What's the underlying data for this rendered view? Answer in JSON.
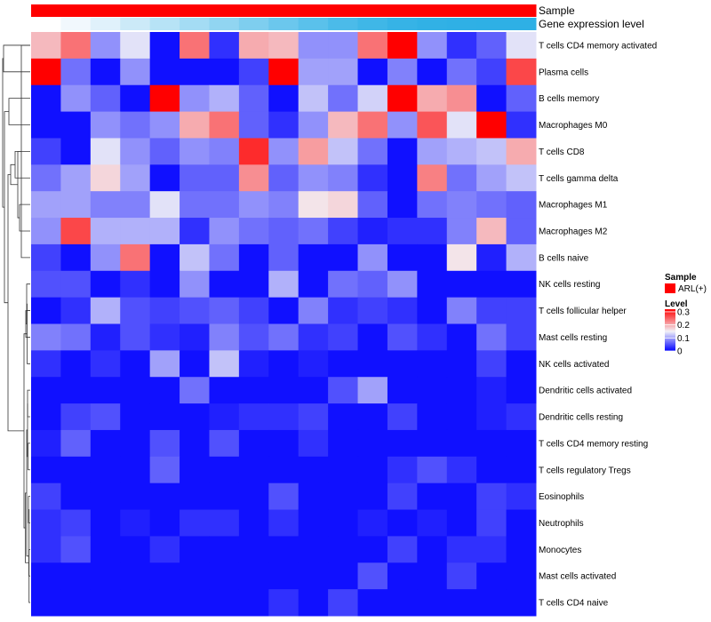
{
  "chart_data": {
    "type": "heatmap",
    "annotations": [
      {
        "name": "Sample",
        "color": "#ff0000"
      },
      {
        "name": "Gene expression level",
        "colors": [
          "#ffffff",
          "#f1f8fd",
          "#e0f1fb",
          "#cceaf8",
          "#b7e3f6",
          "#a4dcf4",
          "#91d5f1",
          "#7eceef",
          "#6bc7ed",
          "#5ac1eb",
          "#4bbbe9",
          "#3fb7e7",
          "#36b3e6",
          "#31b1e5",
          "#2fb0e5",
          "#2eb0e5"
        ]
      }
    ],
    "rows": [
      "T cells CD4 memory activated",
      "Plasma cells",
      "B cells memory",
      "Macrophages M0",
      "T cells CD8",
      "T cells gamma delta",
      "Macrophages M1",
      "Macrophages M2",
      "B cells naive",
      "NK cells resting",
      "T cells follicular helper",
      "Mast cells resting",
      "NK cells activated",
      "Dendritic cells activated",
      "Dendritic cells resting",
      "T cells CD4 memory resting",
      "T cells regulatory  Tregs",
      "Eosinophils",
      "Neutrophils",
      "Monocytes",
      "Mast cells activated",
      "T cells CD4 naive"
    ],
    "values": [
      [
        0.19,
        0.24,
        0.09,
        0.14,
        0.01,
        0.24,
        0.03,
        0.2,
        0.19,
        0.09,
        0.09,
        0.24,
        0.32,
        0.09,
        0.03,
        0.06,
        0.14
      ],
      [
        0.32,
        0.07,
        0.01,
        0.09,
        0.01,
        0.01,
        0.01,
        0.04,
        0.32,
        0.1,
        0.1,
        0.01,
        0.08,
        0.01,
        0.07,
        0.04,
        0.27
      ],
      [
        0.01,
        0.09,
        0.06,
        0.01,
        0.32,
        0.09,
        0.11,
        0.06,
        0.01,
        0.12,
        0.07,
        0.13,
        0.32,
        0.2,
        0.22,
        0.01,
        0.06
      ],
      [
        0.01,
        0.01,
        0.09,
        0.07,
        0.09,
        0.2,
        0.24,
        0.06,
        0.03,
        0.09,
        0.19,
        0.24,
        0.09,
        0.26,
        0.14,
        0.32,
        0.03
      ],
      [
        0.04,
        0.01,
        0.14,
        0.09,
        0.06,
        0.09,
        0.08,
        0.29,
        0.09,
        0.21,
        0.12,
        0.07,
        0.01,
        0.1,
        0.11,
        0.12,
        0.2
      ],
      [
        0.07,
        0.1,
        0.17,
        0.1,
        0.01,
        0.06,
        0.06,
        0.22,
        0.06,
        0.09,
        0.08,
        0.03,
        0.01,
        0.23,
        0.07,
        0.1,
        0.12
      ],
      [
        0.1,
        0.1,
        0.08,
        0.08,
        0.14,
        0.07,
        0.07,
        0.09,
        0.08,
        0.16,
        0.17,
        0.06,
        0.01,
        0.07,
        0.08,
        0.07,
        0.06
      ],
      [
        0.09,
        0.27,
        0.11,
        0.11,
        0.11,
        0.03,
        0.09,
        0.07,
        0.06,
        0.07,
        0.04,
        0.02,
        0.03,
        0.03,
        0.08,
        0.19,
        0.06
      ],
      [
        0.04,
        0.01,
        0.09,
        0.24,
        0.01,
        0.12,
        0.07,
        0.01,
        0.06,
        0.01,
        0.01,
        0.09,
        0.01,
        0.01,
        0.16,
        0.02,
        0.11
      ],
      [
        0.05,
        0.05,
        0.01,
        0.03,
        0.01,
        0.09,
        0.01,
        0.01,
        0.11,
        0.01,
        0.07,
        0.06,
        0.09,
        0.01,
        0.01,
        0.01,
        0.01
      ],
      [
        0.01,
        0.03,
        0.11,
        0.05,
        0.04,
        0.05,
        0.06,
        0.04,
        0.01,
        0.08,
        0.03,
        0.04,
        0.03,
        0.01,
        0.08,
        0.04,
        0.04
      ],
      [
        0.08,
        0.07,
        0.02,
        0.05,
        0.03,
        0.02,
        0.08,
        0.05,
        0.07,
        0.03,
        0.04,
        0.01,
        0.05,
        0.03,
        0.01,
        0.07,
        0.04
      ],
      [
        0.03,
        0.01,
        0.03,
        0.01,
        0.1,
        0.01,
        0.12,
        0.02,
        0.01,
        0.02,
        0.01,
        0.01,
        0.01,
        0.01,
        0.01,
        0.04,
        0.01
      ],
      [
        0.01,
        0.01,
        0.01,
        0.01,
        0.01,
        0.07,
        0.01,
        0.01,
        0.01,
        0.01,
        0.05,
        0.1,
        0.01,
        0.01,
        0.01,
        0.02,
        0.01
      ],
      [
        0.01,
        0.04,
        0.05,
        0.01,
        0.01,
        0.01,
        0.02,
        0.03,
        0.03,
        0.04,
        0.01,
        0.01,
        0.04,
        0.01,
        0.01,
        0.02,
        0.03
      ],
      [
        0.02,
        0.06,
        0.01,
        0.01,
        0.05,
        0.01,
        0.05,
        0.01,
        0.01,
        0.03,
        0.01,
        0.01,
        0.01,
        0.01,
        0.01,
        0.01,
        0.01
      ],
      [
        0.01,
        0.01,
        0.01,
        0.01,
        0.06,
        0.01,
        0.01,
        0.01,
        0.01,
        0.01,
        0.01,
        0.01,
        0.03,
        0.05,
        0.03,
        0.01,
        0.01
      ],
      [
        0.04,
        0.01,
        0.01,
        0.01,
        0.01,
        0.01,
        0.01,
        0.01,
        0.05,
        0.01,
        0.01,
        0.01,
        0.04,
        0.01,
        0.01,
        0.04,
        0.03
      ],
      [
        0.03,
        0.04,
        0.01,
        0.02,
        0.01,
        0.03,
        0.03,
        0.01,
        0.03,
        0.01,
        0.01,
        0.02,
        0.01,
        0.02,
        0.01,
        0.04,
        0.01
      ],
      [
        0.03,
        0.05,
        0.01,
        0.01,
        0.03,
        0.01,
        0.01,
        0.01,
        0.01,
        0.01,
        0.01,
        0.01,
        0.04,
        0.01,
        0.03,
        0.03,
        0.01
      ],
      [
        0.01,
        0.01,
        0.01,
        0.01,
        0.01,
        0.01,
        0.01,
        0.01,
        0.01,
        0.01,
        0.01,
        0.05,
        0.01,
        0.01,
        0.04,
        0.01,
        0.01
      ],
      [
        0.01,
        0.01,
        0.01,
        0.01,
        0.01,
        0.01,
        0.01,
        0.01,
        0.03,
        0.01,
        0.04,
        0.01,
        0.01,
        0.01,
        0.01,
        0.01,
        0.01
      ]
    ],
    "color_scale": {
      "stops": [
        {
          "value": 0,
          "color": "#0000ff"
        },
        {
          "value": 0.15,
          "color": "#f2f2f8"
        },
        {
          "value": 0.32,
          "color": "#ff0000"
        }
      ]
    },
    "legend": {
      "sample_title": "Sample",
      "sample_label": "ARL(+)",
      "sample_color": "#ff0000",
      "level_title": "Level",
      "level_ticks": [
        {
          "label": "0.3",
          "value": 0.3
        },
        {
          "label": "0.2",
          "value": 0.2
        },
        {
          "label": "0.1",
          "value": 0.1
        },
        {
          "label": "0",
          "value": 0
        }
      ],
      "level_range": [
        0,
        0.32
      ],
      "placement": "right"
    }
  }
}
